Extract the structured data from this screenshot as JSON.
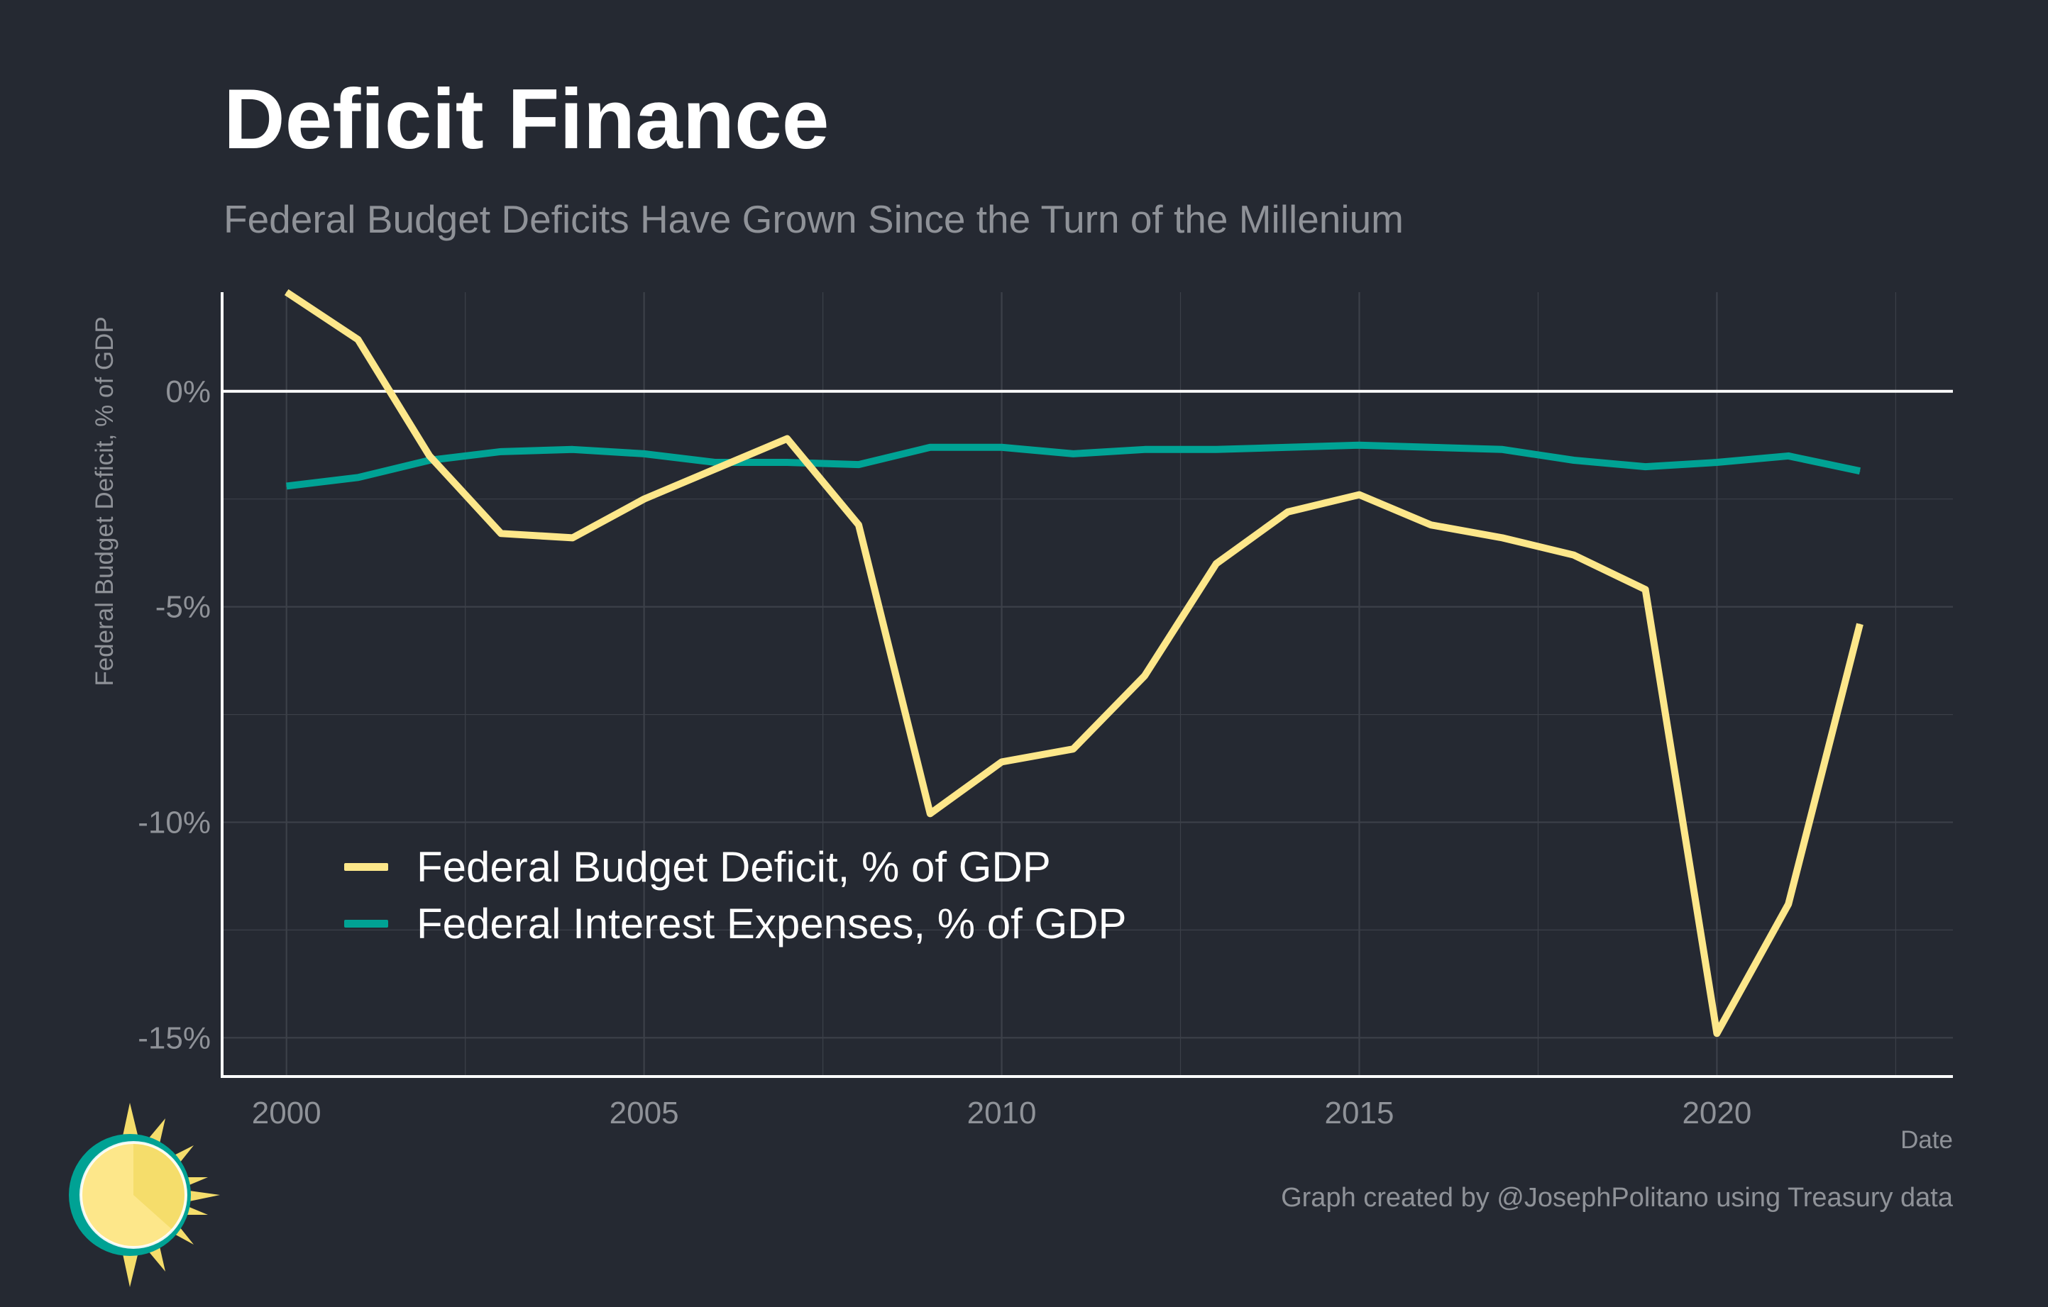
{
  "title": "Deficit Finance",
  "subtitle": "Federal Budget Deficits Have Grown Since the Turn of the Millenium",
  "caption": "Graph created by @JosephPolitano using Treasury data",
  "logo_icon": "sun-icon",
  "colors": {
    "background": "#252932",
    "deficit": "#fde78a",
    "interest": "#00a294",
    "text_muted": "#8f9298",
    "grid": "#3c4049"
  },
  "chart_data": {
    "type": "line",
    "title": "Deficit Finance",
    "subtitle": "Federal Budget Deficits Have Grown Since the Turn of the Millenium",
    "xlabel": "Date",
    "ylabel": "Federal Budget Deficit, % of GDP",
    "xlim": [
      1999.1,
      2023.3
    ],
    "ylim": [
      -15.9,
      2.3
    ],
    "x_ticks": [
      2000,
      2005,
      2010,
      2015,
      2020
    ],
    "x_tick_labels": [
      "2000",
      "2005",
      "2010",
      "2015",
      "2020"
    ],
    "y_ticks": [
      0,
      -5,
      -10,
      -15
    ],
    "y_tick_labels": [
      "0%",
      "-5%",
      "-10%",
      "-15%"
    ],
    "grid": true,
    "zero_line": true,
    "legend_position": "bottom-left",
    "x": [
      2000,
      2001,
      2002,
      2003,
      2004,
      2005,
      2006,
      2007,
      2008,
      2009,
      2010,
      2011,
      2012,
      2013,
      2014,
      2015,
      2016,
      2017,
      2018,
      2019,
      2020,
      2021,
      2022
    ],
    "series": [
      {
        "name": "Federal Budget Deficit, % of GDP",
        "color": "#fde78a",
        "values": [
          2.3,
          1.2,
          -1.5,
          -3.3,
          -3.4,
          -2.5,
          -1.8,
          -1.1,
          -3.1,
          -9.8,
          -8.6,
          -8.3,
          -6.6,
          -4.0,
          -2.8,
          -2.4,
          -3.1,
          -3.4,
          -3.8,
          -4.6,
          -14.9,
          -11.9,
          -5.4
        ]
      },
      {
        "name": "Federal Interest Expenses, % of GDP",
        "color": "#00a294",
        "values": [
          -2.2,
          -2.0,
          -1.6,
          -1.4,
          -1.35,
          -1.45,
          -1.65,
          -1.65,
          -1.7,
          -1.3,
          -1.3,
          -1.45,
          -1.35,
          -1.35,
          -1.3,
          -1.25,
          -1.3,
          -1.35,
          -1.6,
          -1.75,
          -1.65,
          -1.5,
          -1.85
        ]
      }
    ]
  }
}
